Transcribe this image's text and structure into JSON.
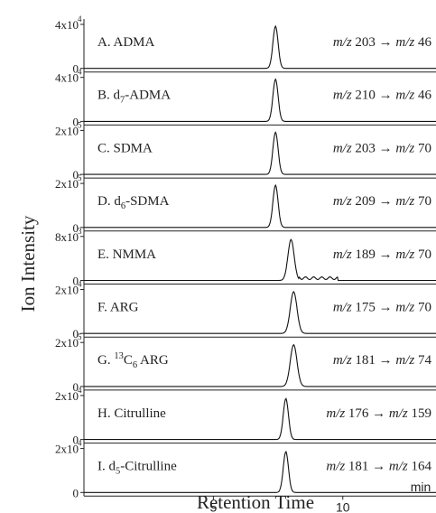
{
  "chart_data": {
    "type": "line",
    "xlabel": "Retention Time",
    "ylabel": "Ion Intensity",
    "x_unit": "min",
    "xlim": [
      0,
      13.6
    ],
    "x_ticks": [
      5,
      10
    ],
    "x_tick_labels": [
      "5",
      "10"
    ],
    "panels": [
      {
        "label": "A. ADMA",
        "transition": "m/z 203 → m/z 46",
        "y_max_label": "4x10",
        "y_max_exp": "4",
        "y_zero_label": "0",
        "peak_rt": 7.4,
        "peak_height": 0.96,
        "peak_width": 0.1
      },
      {
        "label": "B. d7-ADMA",
        "transition": "m/z 210 → m/z 46",
        "y_max_label": "4x10",
        "y_max_exp": "4",
        "y_zero_label": "0",
        "peak_rt": 7.4,
        "peak_height": 0.96,
        "peak_width": 0.1
      },
      {
        "label": "C. SDMA",
        "transition": "m/z 203 → m/z 70",
        "y_max_label": "2x10",
        "y_max_exp": "5",
        "y_zero_label": "0",
        "peak_rt": 7.4,
        "peak_height": 0.96,
        "peak_width": 0.1
      },
      {
        "label": "D. d6-SDMA",
        "transition": "m/z 209 → m/z 70",
        "y_max_label": "2x10",
        "y_max_exp": "5",
        "y_zero_label": "0",
        "peak_rt": 7.4,
        "peak_height": 0.96,
        "peak_width": 0.1
      },
      {
        "label": "E. NMMA",
        "transition": "m/z 189 → m/z 70",
        "y_max_label": "8x10",
        "y_max_exp": "3",
        "y_zero_label": "0",
        "peak_rt": 8.0,
        "peak_height": 0.93,
        "peak_width": 0.12
      },
      {
        "label": "F. ARG",
        "transition": "m/z 175 → m/z 70",
        "y_max_label": "2x10",
        "y_max_exp": "4",
        "y_zero_label": "0",
        "peak_rt": 8.1,
        "peak_height": 0.95,
        "peak_width": 0.13
      },
      {
        "label": "G. 13C6 ARG",
        "transition": "m/z 181 → m/z 74",
        "y_max_label": "2x10",
        "y_max_exp": "5",
        "y_zero_label": "0",
        "peak_rt": 8.1,
        "peak_height": 0.95,
        "peak_width": 0.13
      },
      {
        "label": "H. Citrulline",
        "transition": "m/z 176 → m/z 159",
        "y_max_label": "2x10",
        "y_max_exp": "4",
        "y_zero_label": "0",
        "peak_rt": 7.8,
        "peak_height": 0.93,
        "peak_width": 0.1
      },
      {
        "label": "I. d5-Citrulline",
        "transition": "m/z 181 → m/z 164",
        "y_max_label": "2x10",
        "y_max_exp": "4",
        "y_zero_label": "0",
        "peak_rt": 7.8,
        "peak_height": 0.93,
        "peak_width": 0.1
      }
    ]
  }
}
